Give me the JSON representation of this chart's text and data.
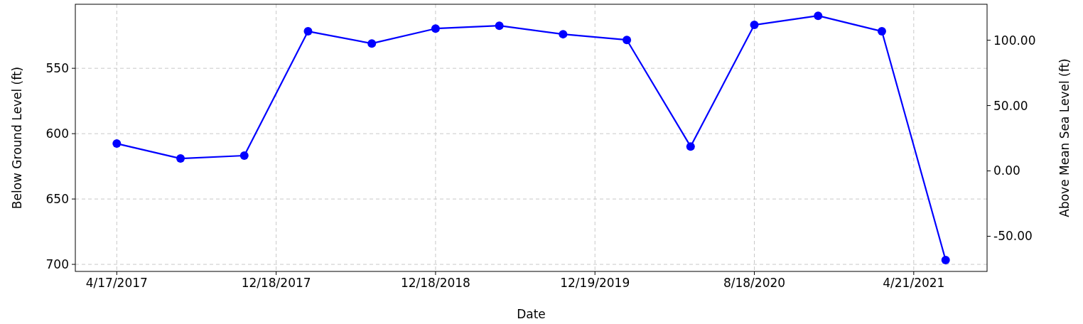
{
  "chart_data": {
    "type": "line",
    "xlabel": "Date",
    "ylabel": "Below Ground Level (ft)",
    "y2label": "Above Mean Sea Level (ft)",
    "categories": [
      null,
      null,
      null,
      null,
      null,
      null,
      null,
      null,
      null,
      null,
      null,
      null,
      null,
      null
    ],
    "annotations": [
      "4/17/2017",
      "12/18/2017",
      "12/18/2018",
      "12/19/2019",
      "8/18/2020",
      "4/21/2021"
    ],
    "series": [
      {
        "color": "#0000ff",
        "values": [
          607.6,
          619,
          616.8,
          521.7,
          531,
          519.6,
          517.4,
          523.9,
          528.3,
          609.8,
          516.8,
          509.8,
          521.7,
          696.7
        ]
      }
    ],
    "ylim": [
      705.4,
      501
    ],
    "yticks": [
      550,
      600,
      650,
      700
    ],
    "y2lim": [
      -76.9,
      127.5
    ],
    "y2ticks": [
      {
        "value": -50,
        "label": "-50.00"
      },
      {
        "value": 0,
        "label": "0.00"
      },
      {
        "value": 50,
        "label": "50.00"
      },
      {
        "value": 100,
        "label": "100.00"
      }
    ],
    "grid": true,
    "marker": "circle",
    "line_style": "solid"
  }
}
